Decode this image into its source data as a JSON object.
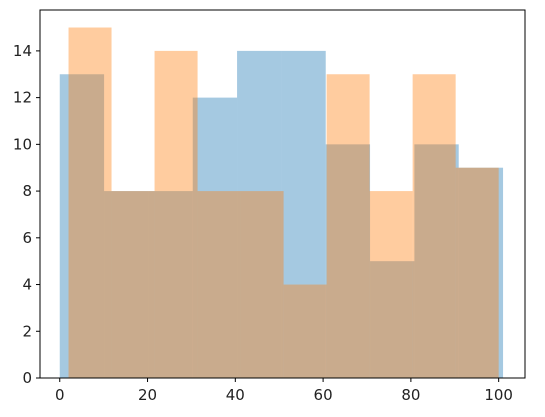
{
  "chart_data": {
    "type": "bar",
    "title": "",
    "xlabel": "",
    "ylabel": "",
    "xlim": [
      -4.5,
      106.0
    ],
    "ylim": [
      0,
      15.75
    ],
    "x_ticks": [
      0,
      20,
      40,
      60,
      80,
      100
    ],
    "y_ticks": [
      0,
      2,
      4,
      6,
      8,
      10,
      12,
      14
    ],
    "grid": false,
    "legend": "none",
    "series": [
      {
        "color": "#1f77b4",
        "opacity": 0.4,
        "bin_edges": [
          0,
          10.1,
          20.2,
          30.3,
          40.4,
          50.5,
          60.6,
          70.7,
          80.8,
          90.9,
          101
        ],
        "counts": [
          13,
          8,
          8,
          12,
          14,
          14,
          10,
          5,
          10,
          9
        ]
      },
      {
        "color": "#ff7f0e",
        "opacity": 0.4,
        "bin_edges": [
          2,
          11.8,
          21.6,
          31.4,
          41.2,
          51.0,
          60.8,
          70.6,
          80.4,
          90.2,
          100
        ],
        "counts": [
          15,
          8,
          14,
          8,
          8,
          4,
          13,
          8,
          13,
          9
        ]
      }
    ]
  }
}
